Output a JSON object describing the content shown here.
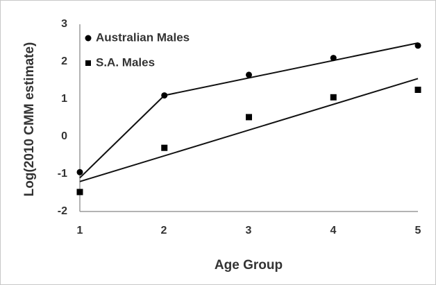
{
  "chart_data": {
    "type": "scatter",
    "xlabel": "Age Group",
    "ylabel": "Log(2010 CMM estimate)",
    "xlim": [
      1,
      5
    ],
    "ylim": [
      -2,
      3
    ],
    "xticks": [
      "1",
      "2",
      "3",
      "4",
      "5"
    ],
    "yticks": [
      "3",
      "2",
      "1",
      "0",
      "-1",
      "-2"
    ],
    "grid": false,
    "legend_position": "top-left",
    "series": [
      {
        "name": "Australian Males",
        "marker": "circle",
        "color": "#000000",
        "x": [
          1,
          2,
          3,
          4,
          5
        ],
        "y": [
          -0.95,
          1.1,
          1.65,
          2.1,
          2.43
        ],
        "fit_line": {
          "x": [
            1,
            2,
            5
          ],
          "y": [
            -1.1,
            1.1,
            2.5
          ]
        }
      },
      {
        "name": "S.A. Males",
        "marker": "square",
        "color": "#000000",
        "x": [
          1,
          2,
          3,
          4,
          5
        ],
        "y": [
          -1.48,
          -0.3,
          0.52,
          1.05,
          1.25
        ],
        "fit_line": {
          "x": [
            1,
            5
          ],
          "y": [
            -1.2,
            1.55
          ]
        }
      }
    ]
  }
}
